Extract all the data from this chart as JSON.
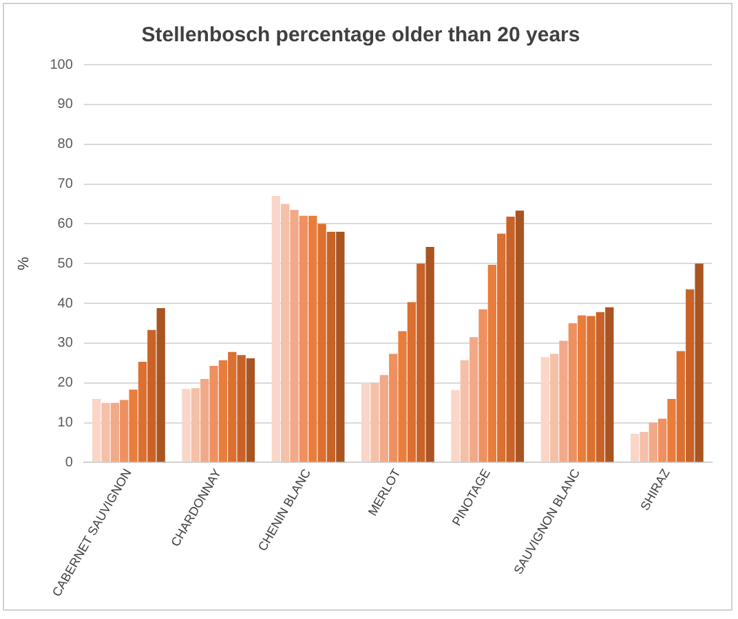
{
  "chart_data": {
    "type": "bar",
    "title": "Stellenbosch percentage older than 20 years",
    "ylabel": "%",
    "categories": [
      "CABERNET SAUVIGNON",
      "CHARDONNAY",
      "CHENIN BLANC",
      "MERLOT",
      "PINOTAGE",
      "SAUVIGNON BLANC",
      "SHIRAZ"
    ],
    "series": [
      {
        "color": "#f9d6c8",
        "values": [
          16,
          18.5,
          67,
          20,
          18.2,
          26.5,
          7.2
        ]
      },
      {
        "color": "#f5c0a8",
        "values": [
          15,
          18.7,
          65,
          20,
          25.7,
          27.3,
          7.7
        ]
      },
      {
        "color": "#f2a988",
        "values": [
          15,
          21,
          63.5,
          22,
          31.5,
          30.6,
          10
        ]
      },
      {
        "color": "#ee9060",
        "values": [
          15.7,
          24.3,
          62,
          27.3,
          38.5,
          35,
          11
        ]
      },
      {
        "color": "#e97d3c",
        "values": [
          18.3,
          25.7,
          62,
          33,
          49.7,
          37,
          16
        ]
      },
      {
        "color": "#db7030",
        "values": [
          25.3,
          27.8,
          60,
          40.3,
          57.5,
          36.8,
          28
        ]
      },
      {
        "color": "#c86227",
        "values": [
          33.3,
          27,
          58,
          50,
          61.8,
          37.8,
          43.5
        ]
      },
      {
        "color": "#a95522",
        "values": [
          38.8,
          26.2,
          58,
          54.2,
          63.3,
          39,
          50
        ]
      }
    ],
    "ylim": [
      0,
      100
    ],
    "yticks": [
      0,
      10,
      20,
      30,
      40,
      50,
      60,
      70,
      80,
      90,
      100
    ],
    "grid": "y",
    "legend": false
  }
}
